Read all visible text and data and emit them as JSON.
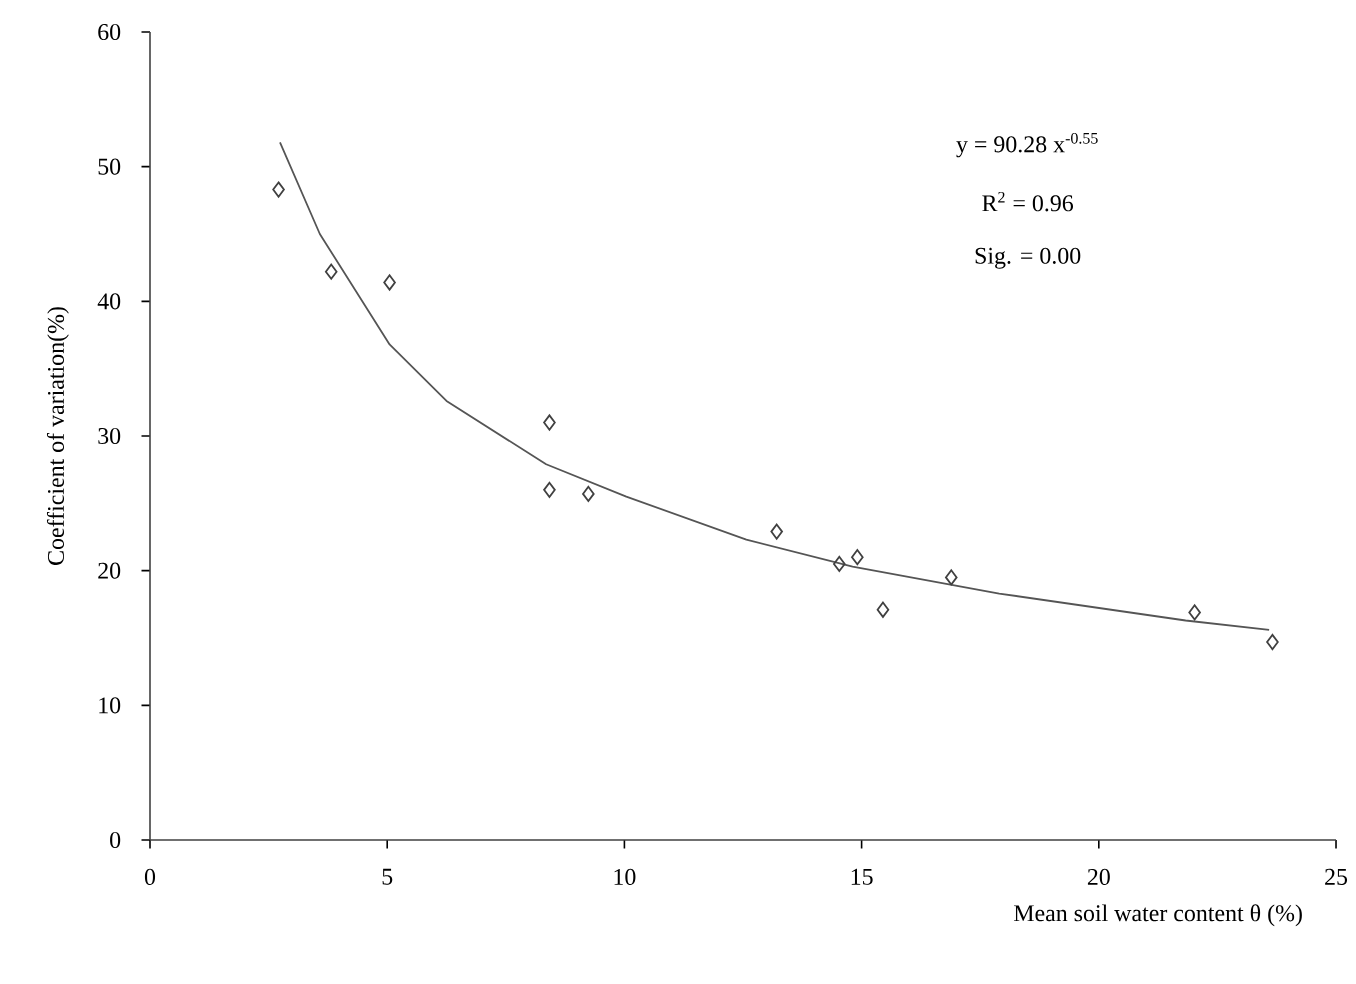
{
  "chart_data": {
    "type": "scatter",
    "xlabel": "Mean soil water content θ (%)",
    "ylabel": "Coefficient of variation(%)",
    "annotations": [
      "y = 90.28 x$^{-0.55}$",
      "R$^{2}$ = 0.96",
      "Sig. = 0.00"
    ],
    "xlim": [
      0,
      25
    ],
    "ylim": [
      0,
      60
    ],
    "xticks": [
      0,
      5,
      10,
      15,
      20,
      25
    ],
    "yticks": [
      0,
      10,
      20,
      30,
      40,
      50,
      60
    ],
    "grid": false,
    "series": [
      {
        "marker": "diamond",
        "color": "#404040",
        "x": [
          2.71,
          3.82,
          5.05,
          8.42,
          8.42,
          9.24,
          13.21,
          14.53,
          14.91,
          15.45,
          16.89,
          22.02,
          23.66
        ],
        "values": [
          48.3,
          42.2,
          41.4,
          31.0,
          26.0,
          25.7,
          22.9,
          20.5,
          21.0,
          17.1,
          19.5,
          16.9,
          14.7
        ]
      },
      {
        "type": "line",
        "marker": "none",
        "line_style": "solid",
        "color": "#555555",
        "x": [
          2.74,
          3.58,
          5.05,
          6.25,
          8.35,
          10.04,
          12.57,
          14.81,
          17.9,
          21.83,
          23.59
        ],
        "values": [
          51.8,
          45.0,
          36.8,
          32.6,
          27.9,
          25.5,
          22.3,
          20.3,
          18.3,
          16.3,
          15.6
        ]
      }
    ]
  }
}
